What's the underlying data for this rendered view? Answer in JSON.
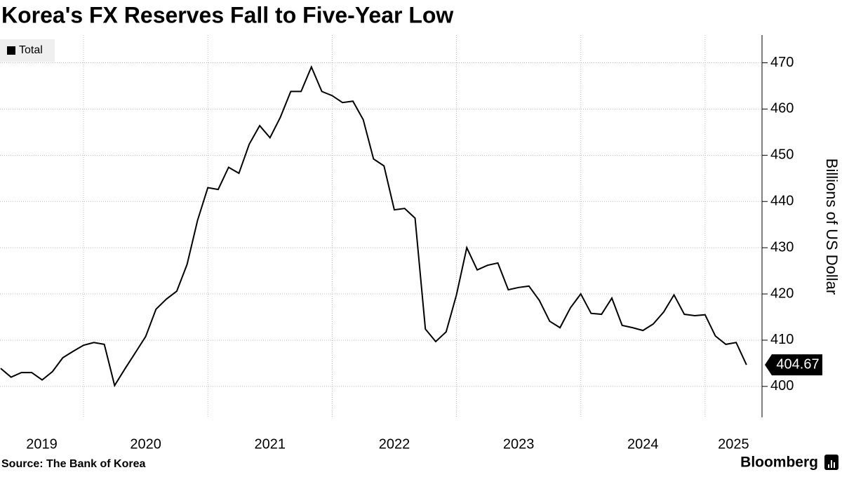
{
  "chart_data": {
    "type": "line",
    "title": "Korea's FX Reserves Fall to Five-Year Low",
    "y_axis_label": "Billions of US Dollar",
    "source": "Source: The Bank of Korea",
    "brand": "Bloomberg",
    "legend_position": "top-left",
    "grid": true,
    "xlim": [
      2019.328,
      2025.458
    ],
    "xticks": [
      2019,
      2020,
      2021,
      2022,
      2023,
      2024,
      2025
    ],
    "ylim": [
      393.3,
      476
    ],
    "yticks": [
      400,
      410,
      420,
      430,
      440,
      450,
      460,
      470
    ],
    "x": [
      2019.333,
      2019.417,
      2019.5,
      2019.583,
      2019.667,
      2019.75,
      2019.833,
      2019.917,
      2020,
      2020.083,
      2020.167,
      2020.25,
      2020.333,
      2020.417,
      2020.5,
      2020.583,
      2020.667,
      2020.75,
      2020.833,
      2020.917,
      2021,
      2021.083,
      2021.167,
      2021.25,
      2021.333,
      2021.417,
      2021.5,
      2021.583,
      2021.667,
      2021.75,
      2021.833,
      2021.917,
      2022,
      2022.083,
      2022.167,
      2022.25,
      2022.333,
      2022.417,
      2022.5,
      2022.583,
      2022.667,
      2022.75,
      2022.833,
      2022.917,
      2023,
      2023.083,
      2023.167,
      2023.25,
      2023.333,
      2023.417,
      2023.5,
      2023.583,
      2023.667,
      2023.75,
      2023.833,
      2023.917,
      2024,
      2024.083,
      2024.167,
      2024.25,
      2024.333,
      2024.417,
      2024.5,
      2024.583,
      2024.667,
      2024.75,
      2024.833,
      2024.917,
      2025,
      2025.083,
      2025.167,
      2025.25,
      2025.333
    ],
    "series": [
      {
        "name": "Total",
        "color": "#000000",
        "values": [
          403.9,
          402.0,
          403.0,
          403.0,
          401.4,
          403.2,
          406.2,
          407.6,
          408.9,
          409.5,
          409.1,
          400.2,
          403.8,
          407.3,
          410.8,
          416.7,
          418.9,
          420.6,
          426.4,
          435.9,
          443.0,
          442.6,
          447.4,
          446.1,
          452.4,
          456.4,
          453.8,
          458.2,
          463.8,
          463.8,
          469.1,
          463.8,
          462.9,
          461.4,
          461.7,
          457.7,
          449.2,
          447.7,
          438.2,
          438.5,
          436.4,
          412.4,
          409.7,
          411.8,
          419.8,
          430.0,
          425.2,
          426.2,
          426.7,
          420.9,
          421.4,
          421.7,
          418.6,
          414.1,
          412.7,
          417.0,
          420.0,
          415.8,
          415.6,
          419.1,
          413.2,
          412.7,
          412.1,
          413.5,
          416.1,
          419.8,
          415.6,
          415.3,
          415.5,
          410.9,
          409.1,
          409.5,
          404.67
        ]
      }
    ]
  }
}
